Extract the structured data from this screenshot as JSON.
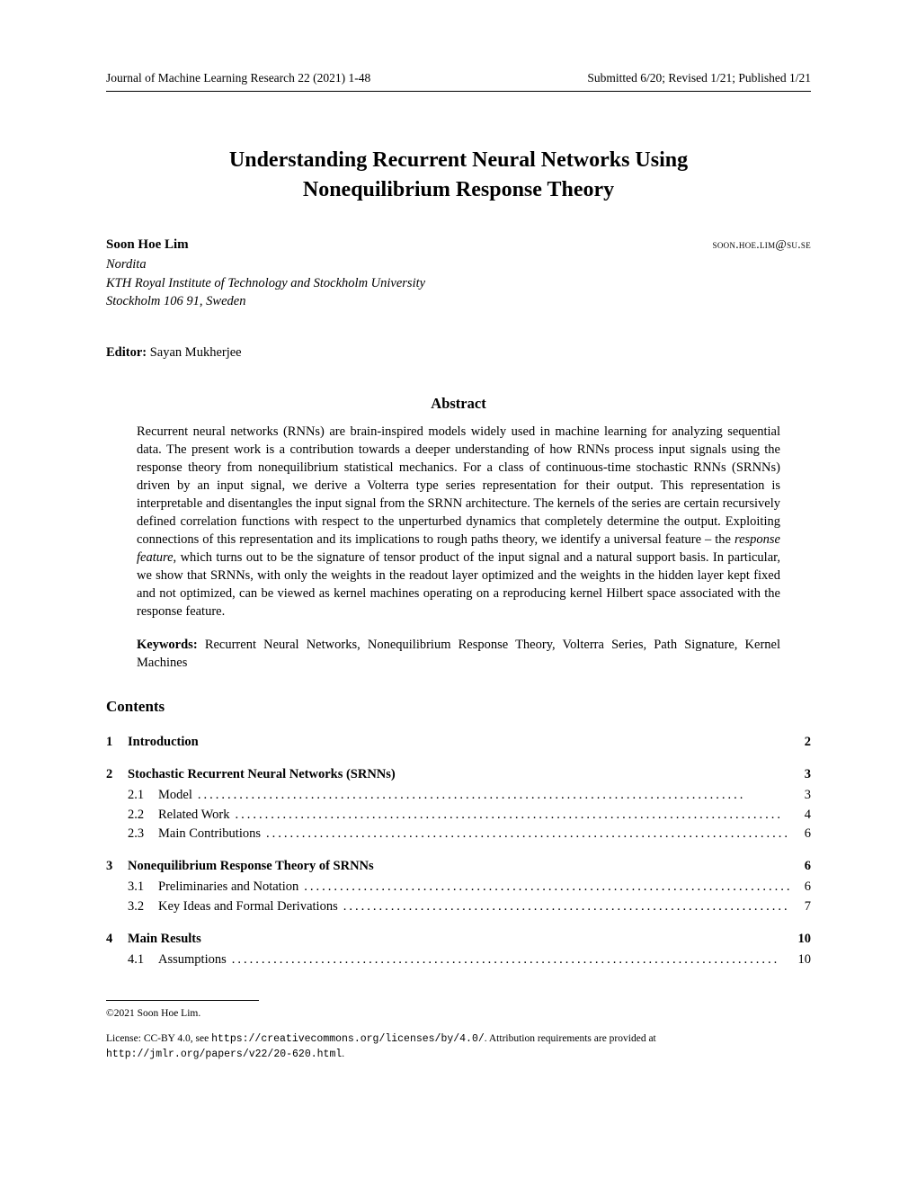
{
  "header": {
    "left": "Journal of Machine Learning Research 22 (2021) 1-48",
    "right": "Submitted 6/20; Revised 1/21; Published 1/21"
  },
  "title_line1": "Understanding Recurrent Neural Networks Using",
  "title_line2": "Nonequilibrium Response Theory",
  "author": {
    "name": "Soon Hoe Lim",
    "email": "soon.hoe.lim@su.se",
    "affiliation1": "Nordita",
    "affiliation2": "KTH Royal Institute of Technology and Stockholm University",
    "affiliation3": "Stockholm 106 91, Sweden"
  },
  "editor_label": "Editor:",
  "editor_name": "Sayan Mukherjee",
  "abstract_heading": "Abstract",
  "abstract_body": "Recurrent neural networks (RNNs) are brain-inspired models widely used in machine learning for analyzing sequential data. The present work is a contribution towards a deeper understanding of how RNNs process input signals using the response theory from nonequilibrium statistical mechanics. For a class of continuous-time stochastic RNNs (SRNNs) driven by an input signal, we derive a Volterra type series representation for their output. This representation is interpretable and disentangles the input signal from the SRNN architecture. The kernels of the series are certain recursively defined correlation functions with respect to the unperturbed dynamics that completely determine the output. Exploiting connections of this representation and its implications to rough paths theory, we identify a universal feature – the response feature, which turns out to be the signature of tensor product of the input signal and a natural support basis. In particular, we show that SRNNs, with only the weights in the readout layer optimized and the weights in the hidden layer kept fixed and not optimized, can be viewed as kernel machines operating on a reproducing kernel Hilbert space associated with the response feature.",
  "keywords_label": "Keywords:",
  "keywords_text": "Recurrent Neural Networks, Nonequilibrium Response Theory, Volterra Series, Path Signature, Kernel Machines",
  "contents_heading": "Contents",
  "toc": [
    {
      "num": "1",
      "label": "Introduction",
      "page": "2",
      "subs": []
    },
    {
      "num": "2",
      "label": "Stochastic Recurrent Neural Networks (SRNNs)",
      "page": "3",
      "subs": [
        {
          "num": "2.1",
          "label": "Model",
          "page": "3"
        },
        {
          "num": "2.2",
          "label": "Related Work",
          "page": "4"
        },
        {
          "num": "2.3",
          "label": "Main Contributions",
          "page": "6"
        }
      ]
    },
    {
      "num": "3",
      "label": "Nonequilibrium Response Theory of SRNNs",
      "page": "6",
      "subs": [
        {
          "num": "3.1",
          "label": "Preliminaries and Notation",
          "page": "6"
        },
        {
          "num": "3.2",
          "label": "Key Ideas and Formal Derivations",
          "page": "7"
        }
      ]
    },
    {
      "num": "4",
      "label": "Main Results",
      "page": "10",
      "subs": [
        {
          "num": "4.1",
          "label": "Assumptions",
          "page": "10"
        }
      ]
    }
  ],
  "footer": {
    "copyright": "©2021 Soon Hoe Lim.",
    "license_prefix": "License: CC-BY 4.0, see ",
    "license_url": "https://creativecommons.org/licenses/by/4.0/",
    "license_mid": ". Attribution requirements are provided at ",
    "paper_url": "http://jmlr.org/papers/v22/20-620.html",
    "license_suffix": "."
  }
}
